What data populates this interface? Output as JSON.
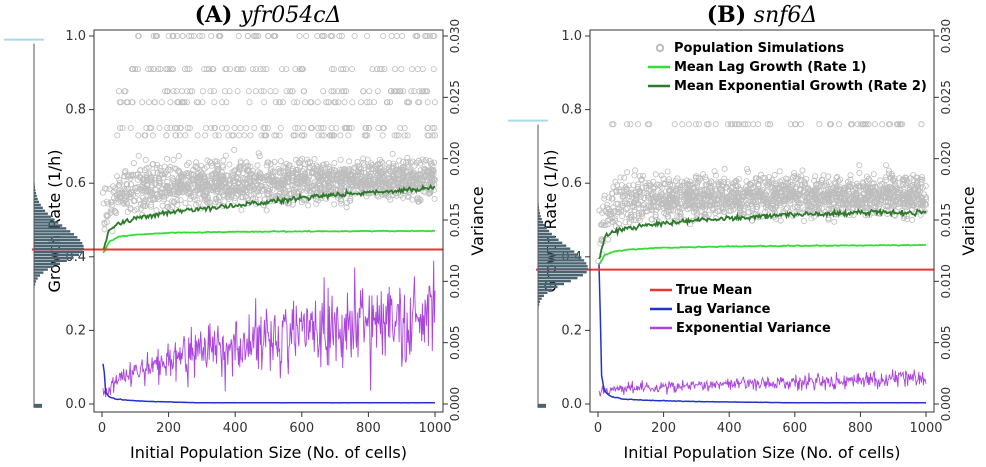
{
  "chart_data": [
    {
      "type": "scatter",
      "panel": "(A)",
      "title_prefix": "(A)",
      "title_strain": "yfr054c",
      "title_symbol": "Δ",
      "xlabel": "Initial Population Size (No. of cells)",
      "ylabel": "Growth Rate (1/h)",
      "y2label": "Variance",
      "xlim": [
        0,
        1000
      ],
      "ylim": [
        0,
        1.0
      ],
      "y2lim": [
        0,
        0.03
      ],
      "x_ticks": [
        "0",
        "200",
        "400",
        "600",
        "800",
        "1000"
      ],
      "y_ticks": [
        "0.0",
        "0.2",
        "0.4",
        "0.6",
        "0.8",
        "1.0"
      ],
      "y2_ticks": [
        "0.000",
        "0.005",
        "0.010",
        "0.015",
        "0.020",
        "0.025",
        "0.030"
      ],
      "true_mean": 0.42,
      "histogram_peak": 0.42,
      "histogram_max_marker": 0.99,
      "series": [
        {
          "name": "Population Simulations",
          "color": "#bdbdbd",
          "style": "points",
          "x": [
            5,
            50,
            100,
            200,
            300,
            400,
            500,
            600,
            700,
            800,
            900,
            1000
          ],
          "band_low": [
            0.38,
            0.47,
            0.48,
            0.49,
            0.5,
            0.5,
            0.51,
            0.51,
            0.52,
            0.52,
            0.52,
            0.52
          ],
          "band_high": [
            0.65,
            0.68,
            0.7,
            0.7,
            0.7,
            0.7,
            0.7,
            0.7,
            0.7,
            0.7,
            0.7,
            0.7
          ],
          "discrete_levels": [
            1.0,
            0.91,
            0.85,
            0.82,
            0.75,
            0.73
          ]
        },
        {
          "name": "Mean Lag Growth (Rate 1)",
          "color": "#33dd33",
          "axis": "left",
          "x": [
            5,
            20,
            50,
            100,
            200,
            400,
            600,
            800,
            1000
          ],
          "y": [
            0.41,
            0.44,
            0.455,
            0.46,
            0.465,
            0.468,
            0.469,
            0.47,
            0.47
          ]
        },
        {
          "name": "Mean Exponential Growth (Rate 2)",
          "color": "#2d7a2d",
          "axis": "left",
          "x": [
            5,
            20,
            50,
            100,
            200,
            300,
            400,
            500,
            600,
            700,
            800,
            900,
            1000
          ],
          "y": [
            0.42,
            0.47,
            0.49,
            0.505,
            0.52,
            0.53,
            0.54,
            0.55,
            0.56,
            0.57,
            0.575,
            0.58,
            0.59
          ]
        },
        {
          "name": "Lag Variance",
          "color": "#2233cc",
          "axis": "right",
          "x": [
            5,
            10,
            20,
            40,
            80,
            150,
            300,
            600,
            1000
          ],
          "y": [
            0.0035,
            0.001,
            0.0006,
            0.0004,
            0.0003,
            0.0002,
            0.0001,
            0.0001,
            0.0001
          ]
        },
        {
          "name": "Exponential Variance",
          "color": "#aa44dd",
          "axis": "right",
          "x": [
            5,
            20,
            50,
            100,
            200,
            300,
            400,
            500,
            600,
            700,
            800,
            900,
            1000
          ],
          "y": [
            0.0009,
            0.0012,
            0.002,
            0.0025,
            0.0035,
            0.0045,
            0.005,
            0.0055,
            0.006,
            0.0065,
            0.0068,
            0.007,
            0.0072
          ]
        }
      ]
    },
    {
      "type": "scatter",
      "panel": "(B)",
      "title_prefix": "(B)",
      "title_strain": "snf6",
      "title_symbol": "Δ",
      "xlabel": "Initial Population Size (No. of cells)",
      "ylabel": "Growth Rate (1/h)",
      "y2label": "Variance",
      "xlim": [
        0,
        1000
      ],
      "ylim": [
        0,
        1.0
      ],
      "y2lim": [
        0,
        0.03
      ],
      "x_ticks": [
        "0",
        "200",
        "400",
        "600",
        "800",
        "1000"
      ],
      "y_ticks": [
        "0.0",
        "0.2",
        "0.4",
        "0.6",
        "0.8",
        "1.0"
      ],
      "y2_ticks": [
        "0.000",
        "0.005",
        "0.010",
        "0.015",
        "0.020",
        "0.025",
        "0.030"
      ],
      "true_mean": 0.365,
      "histogram_peak": 0.365,
      "histogram_max_marker": 0.77,
      "series": [
        {
          "name": "Population Simulations",
          "color": "#bdbdbd",
          "style": "points",
          "x": [
            5,
            50,
            100,
            200,
            300,
            400,
            500,
            600,
            700,
            800,
            900,
            1000
          ],
          "band_low": [
            0.35,
            0.44,
            0.45,
            0.46,
            0.46,
            0.47,
            0.47,
            0.47,
            0.47,
            0.47,
            0.47,
            0.47
          ],
          "band_high": [
            0.62,
            0.65,
            0.66,
            0.66,
            0.66,
            0.66,
            0.66,
            0.66,
            0.66,
            0.66,
            0.66,
            0.66
          ],
          "discrete_levels": [
            0.76
          ]
        },
        {
          "name": "Mean Lag Growth (Rate 1)",
          "color": "#33dd33",
          "axis": "left",
          "x": [
            5,
            20,
            50,
            100,
            200,
            400,
            600,
            800,
            1000
          ],
          "y": [
            0.38,
            0.405,
            0.415,
            0.42,
            0.425,
            0.428,
            0.43,
            0.431,
            0.432
          ]
        },
        {
          "name": "Mean Exponential Growth (Rate 2)",
          "color": "#2d7a2d",
          "axis": "left",
          "x": [
            5,
            20,
            50,
            100,
            200,
            300,
            400,
            500,
            600,
            700,
            800,
            900,
            1000
          ],
          "y": [
            0.4,
            0.45,
            0.47,
            0.48,
            0.49,
            0.5,
            0.505,
            0.51,
            0.515,
            0.515,
            0.52,
            0.52,
            0.52
          ]
        },
        {
          "name": "True Mean",
          "color": "#ee3333",
          "axis": "left",
          "x": [
            0,
            1000
          ],
          "y": [
            0.365,
            0.365
          ]
        },
        {
          "name": "Lag Variance",
          "color": "#2233cc",
          "axis": "right",
          "x": [
            5,
            10,
            20,
            40,
            80,
            150,
            300,
            600,
            1000
          ],
          "y": [
            0.011,
            0.0025,
            0.001,
            0.0006,
            0.0004,
            0.0003,
            0.0002,
            0.0001,
            0.0001
          ]
        },
        {
          "name": "Exponential Variance",
          "color": "#aa44dd",
          "axis": "right",
          "x": [
            5,
            20,
            50,
            100,
            200,
            300,
            400,
            500,
            600,
            700,
            800,
            900,
            1000
          ],
          "y": [
            0.001,
            0.0011,
            0.0012,
            0.0013,
            0.0014,
            0.0015,
            0.0016,
            0.0017,
            0.0018,
            0.0019,
            0.002,
            0.002,
            0.0021
          ]
        }
      ]
    }
  ],
  "legend_top": [
    "Population Simulations",
    "Mean Lag Growth (Rate 1)",
    "Mean Exponential Growth (Rate 2)"
  ],
  "legend_bottom": [
    "True Mean",
    "Lag Variance",
    "Exponential Variance"
  ],
  "colors": {
    "points": "#bdbdbd",
    "lag_growth": "#33dd33",
    "exp_growth": "#2d7a2d",
    "true_mean": "#ee3333",
    "lag_var": "#2233cc",
    "exp_var": "#aa44dd",
    "hist_bar": "#4a6472",
    "hist_marker": "#a9d9e6"
  }
}
